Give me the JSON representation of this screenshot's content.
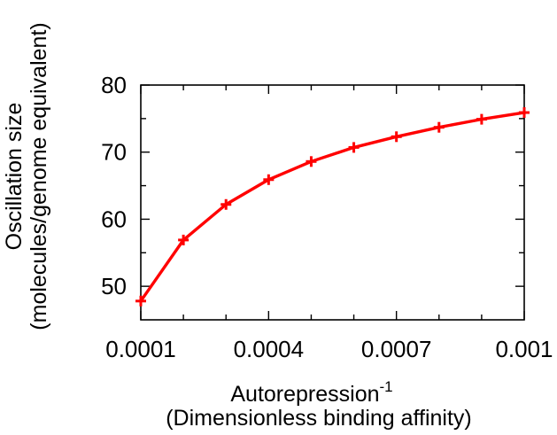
{
  "chart_data": {
    "type": "line",
    "x": [
      0.0001,
      0.0002,
      0.0003,
      0.0004,
      0.0005,
      0.0006,
      0.0007,
      0.0008,
      0.0009,
      0.001
    ],
    "series": [
      {
        "values": [
          47.8,
          56.9,
          62.2,
          65.9,
          68.6,
          70.7,
          72.3,
          73.7,
          74.9,
          75.9
        ],
        "color": "#ff0000",
        "marker": "plus"
      }
    ],
    "xlabel": "Autorepression",
    "xlabel_superscript": "-1",
    "xlabel_line2": "(Dimensionless binding affinity)",
    "ylabel": "Oscillation size",
    "ylabel_line2": "(molecules/genome equivalent)",
    "xlim": [
      0.0001,
      0.001
    ],
    "ylim": [
      45,
      80
    ],
    "xticks": [
      0.0001,
      0.0004,
      0.0007,
      0.001
    ],
    "xtick_labels": [
      "0.0001",
      "0.0004",
      "0.0007",
      "0.001"
    ],
    "xtick_minor": [
      0.0002,
      0.0003,
      0.0005,
      0.0006,
      0.0008,
      0.0009
    ],
    "yticks": [
      50,
      60,
      70,
      80
    ],
    "ytick_labels": [
      "50",
      "60",
      "70",
      "80"
    ],
    "ytick_minor": [
      55,
      65,
      75
    ],
    "grid": false,
    "legend": "none"
  }
}
